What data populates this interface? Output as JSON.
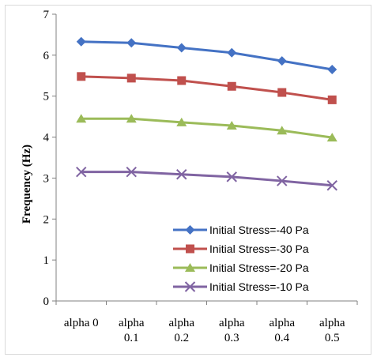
{
  "chart_data": {
    "type": "line",
    "title": "",
    "xlabel": "",
    "ylabel": "Frequency (Hz)",
    "ylim": [
      0,
      7
    ],
    "yticks": [
      "0",
      "1",
      "2",
      "3",
      "4",
      "5",
      "6",
      "7"
    ],
    "categories": [
      [
        "alpha 0"
      ],
      [
        "alpha",
        "0.1"
      ],
      [
        "alpha",
        "0.2"
      ],
      [
        "alpha",
        "0.3"
      ],
      [
        "alpha",
        "0.4"
      ],
      [
        "alpha",
        "0.5"
      ]
    ],
    "grid": false,
    "legend_position": "bottom-right",
    "series": [
      {
        "name": "Initial Stress=-40 Pa",
        "values": [
          6.33,
          6.3,
          6.18,
          6.06,
          5.86,
          5.65
        ],
        "color": "#4472c4",
        "marker": "diamond"
      },
      {
        "name": "Initial Stress=-30 Pa",
        "values": [
          5.48,
          5.44,
          5.38,
          5.24,
          5.09,
          4.91
        ],
        "color": "#c0504d",
        "marker": "square"
      },
      {
        "name": "Initial Stress=-20 Pa",
        "values": [
          4.45,
          4.45,
          4.36,
          4.28,
          4.16,
          3.99
        ],
        "color": "#9bbb59",
        "marker": "triangle"
      },
      {
        "name": "Initial Stress=-10 Pa",
        "values": [
          3.15,
          3.15,
          3.09,
          3.03,
          2.93,
          2.82
        ],
        "color": "#8064a2",
        "marker": "x"
      }
    ]
  }
}
